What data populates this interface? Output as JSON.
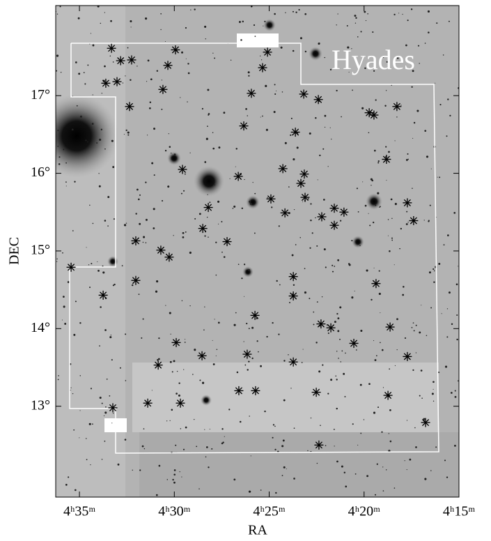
{
  "chart_data": {
    "type": "scatter",
    "title": "Hyades",
    "x_label": "RA",
    "y_label": "DEC",
    "color": "#000000",
    "marker": "asterisk",
    "xlim": [
      36.25,
      15
    ],
    "ylim": [
      11.83,
      18.16
    ],
    "xticks": [
      {
        "value": 35,
        "label": "4ʰ35ᵐ"
      },
      {
        "value": 30,
        "label": "4ʰ30ᵐ"
      },
      {
        "value": 25,
        "label": "4ʰ25ᵐ"
      },
      {
        "value": 20,
        "label": "4ʰ20ᵐ"
      },
      {
        "value": 15,
        "label": "4ʰ15ᵐ"
      }
    ],
    "yticks": [
      {
        "value": 13,
        "label": "13°"
      },
      {
        "value": 14,
        "label": "14°"
      },
      {
        "value": 15,
        "label": "15°"
      },
      {
        "value": 16,
        "label": "16°"
      },
      {
        "value": 17,
        "label": "17°"
      }
    ],
    "x": [
      33.31,
      32.83,
      32.25,
      29.94,
      25.09,
      30.34,
      33.61,
      33.02,
      30.6,
      25.35,
      32.36,
      25.94,
      23.18,
      22.41,
      23.62,
      26.34,
      19.73,
      19.48,
      18.27,
      29.57,
      26.63,
      24.28,
      23.15,
      23.33,
      18.82,
      28.21,
      24.91,
      24.17,
      23.11,
      22.23,
      21.57,
      21.06,
      21.57,
      17.72,
      17.39,
      32.03,
      30.71,
      30.27,
      28.5,
      27.22,
      35.44,
      32.03,
      33.75,
      23.73,
      23.73,
      19.37,
      25.75,
      22.27,
      21.75,
      20.54,
      18.63,
      29.9,
      30.85,
      28.54,
      26.16,
      23.73,
      17.72,
      31.4,
      29.68,
      26.6,
      25.72,
      22.52,
      18.74,
      33.24,
      16.76,
      22.38
    ],
    "y": [
      17.61,
      17.45,
      17.46,
      17.59,
      17.56,
      17.39,
      17.16,
      17.18,
      17.08,
      17.36,
      16.86,
      17.03,
      17.02,
      16.95,
      16.53,
      16.61,
      16.78,
      16.75,
      16.86,
      16.05,
      15.96,
      16.06,
      15.99,
      15.87,
      16.18,
      15.56,
      15.67,
      15.49,
      15.69,
      15.44,
      15.55,
      15.5,
      15.33,
      15.62,
      15.39,
      15.13,
      15.01,
      14.92,
      15.29,
      15.12,
      14.79,
      14.62,
      14.43,
      14.67,
      14.42,
      14.58,
      14.17,
      14.06,
      14.01,
      13.81,
      14.02,
      13.82,
      13.53,
      13.65,
      13.67,
      13.57,
      13.64,
      13.04,
      13.04,
      13.2,
      13.2,
      13.18,
      13.14,
      12.98,
      12.79,
      12.5
    ]
  }
}
